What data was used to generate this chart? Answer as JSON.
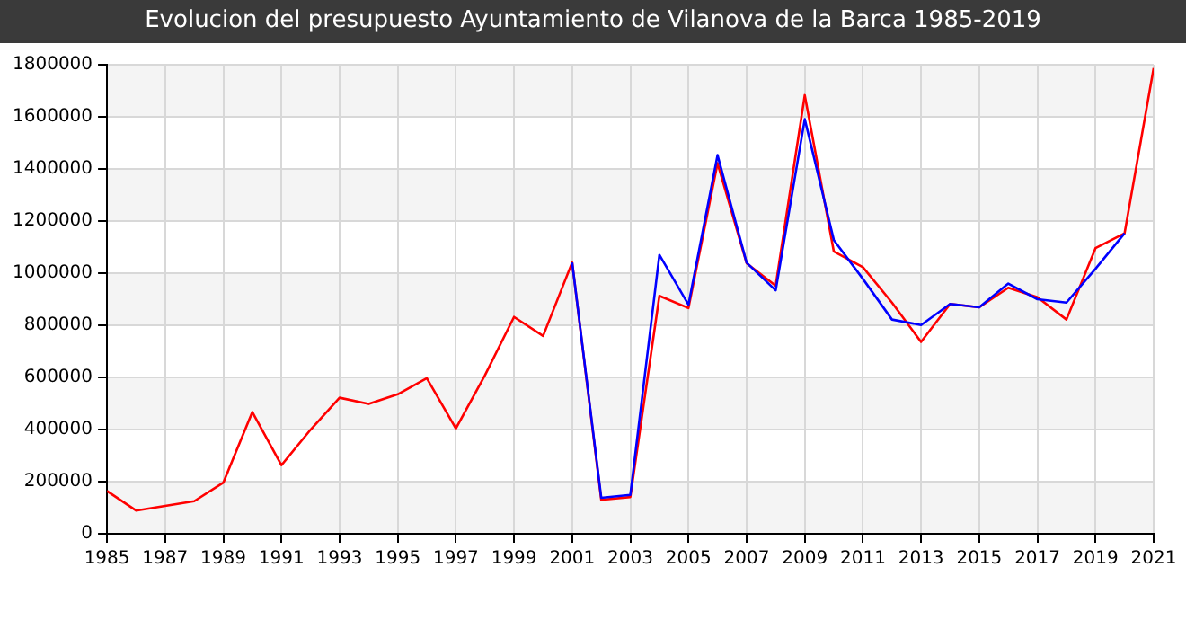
{
  "chart_data": {
    "type": "line",
    "title": "Evolucion del presupuesto Ayuntamiento de Vilanova de la Barca 1985-2019",
    "x": [
      1985,
      1986,
      1987,
      1988,
      1989,
      1990,
      1991,
      1992,
      1993,
      1994,
      1995,
      1996,
      1997,
      1998,
      1999,
      2000,
      2001,
      2002,
      2003,
      2004,
      2005,
      2006,
      2007,
      2008,
      2009,
      2010,
      2011,
      2012,
      2013,
      2014,
      2015,
      2016,
      2017,
      2018,
      2019,
      2020,
      2021
    ],
    "series": [
      {
        "color": "#0000ff",
        "values": [
          null,
          null,
          null,
          null,
          null,
          null,
          null,
          null,
          null,
          null,
          null,
          null,
          null,
          null,
          null,
          null,
          1041000,
          138000,
          149000,
          1070000,
          879000,
          1453000,
          1040000,
          934000,
          1591000,
          1127000,
          978000,
          822000,
          801000,
          882000,
          869000,
          960000,
          900000,
          887000,
          1017000,
          1153000,
          null
        ]
      },
      {
        "color": "#ff0000",
        "values": [
          164000,
          89000,
          107000,
          125000,
          196000,
          467000,
          263000,
          399000,
          522000,
          498000,
          535000,
          597000,
          404000,
          608000,
          832000,
          759000,
          1041000,
          130000,
          141000,
          913000,
          866000,
          1422000,
          1038000,
          952000,
          1683000,
          1083000,
          1023000,
          887000,
          736000,
          882000,
          869000,
          944000,
          908000,
          822000,
          1096000,
          1153000,
          1787000
        ]
      }
    ],
    "xlim": [
      1985,
      2021
    ],
    "xticks": [
      1985,
      1987,
      1989,
      1991,
      1993,
      1995,
      1997,
      1999,
      2001,
      2003,
      2005,
      2007,
      2009,
      2011,
      2013,
      2015,
      2017,
      2019,
      2021
    ],
    "ylim": [
      0,
      1800000
    ],
    "yticks": [
      0,
      200000,
      400000,
      600000,
      800000,
      1000000,
      1200000,
      1400000,
      1600000,
      1800000
    ],
    "grid": true,
    "legend": false,
    "marker": "none",
    "line_style": "solid"
  }
}
